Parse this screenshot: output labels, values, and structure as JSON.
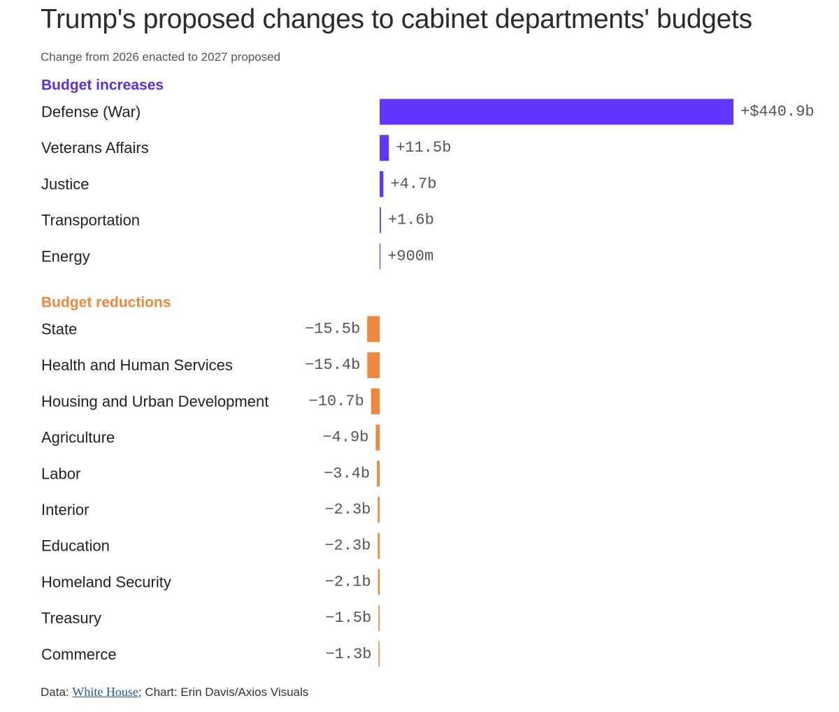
{
  "title": "Trump's proposed changes to cabinet departments' budgets",
  "subtitle": "Change from 2026 enacted to 2027 proposed",
  "footer": {
    "data_prefix": "Data: ",
    "source_link": "White House",
    "credit": "; Chart: Erin Davis/Axios Visuals"
  },
  "colors": {
    "increase": "#6236ff",
    "decrease": "#f0883c",
    "increase_heading": "#5b2ee0",
    "decrease_heading": "#f0883c",
    "label_text": "#222222",
    "value_text": "#555555"
  },
  "chart_data": {
    "type": "bar",
    "orientation": "horizontal",
    "unit": "billion USD",
    "groups": [
      {
        "name": "Budget increases",
        "categories": [
          "Defense (War)",
          "Veterans Affairs",
          "Justice",
          "Transportation",
          "Energy"
        ],
        "values": [
          440.9,
          11.5,
          4.7,
          1.6,
          0.9
        ],
        "labels": [
          "+$440.9b",
          "+11.5b",
          "+4.7b",
          "+1.6b",
          "+900m"
        ]
      },
      {
        "name": "Budget reductions",
        "categories": [
          "State",
          "Health and Human Services",
          "Housing and Urban Development",
          "Agriculture",
          "Labor",
          "Interior",
          "Education",
          "Homeland Security",
          "Treasury",
          "Commerce"
        ],
        "values": [
          -15.5,
          -15.4,
          -10.7,
          -4.9,
          -3.4,
          -2.3,
          -2.3,
          -2.1,
          -1.5,
          -1.3
        ],
        "labels": [
          "−15.5b",
          "−15.4b",
          "−10.7b",
          "−4.9b",
          "−3.4b",
          "−2.3b",
          "−2.3b",
          "−2.1b",
          "−1.5b",
          "−1.3b"
        ]
      }
    ]
  }
}
